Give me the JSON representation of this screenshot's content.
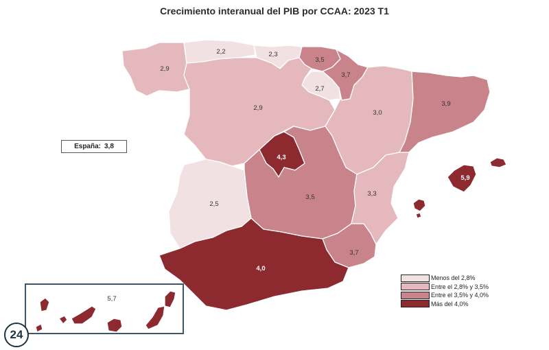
{
  "title": "Crecimiento interanual del PIB por CCAA: 2023 T1",
  "national": {
    "label": "España:",
    "value": "3,8"
  },
  "colors": {
    "menos_2_8": "#f1e1e3",
    "entre_2_8_3_5": "#e4b8bd",
    "entre_3_5_4_0": "#c9838a",
    "mas_4_0": "#8c2a30"
  },
  "legend": [
    {
      "label": "Menos del 2,8%",
      "color_key": "menos_2_8"
    },
    {
      "label": "Entre el 2,8% y 3,5%",
      "color_key": "entre_2_8_3_5"
    },
    {
      "label": "Entre el 3,5% y 4,0%",
      "color_key": "entre_3_5_4_0"
    },
    {
      "label": "Más del 4,0%",
      "color_key": "mas_4_0"
    }
  ],
  "regions": {
    "galicia": {
      "value": "2,9",
      "color_key": "entre_2_8_3_5"
    },
    "asturias": {
      "value": "2,2",
      "color_key": "menos_2_8"
    },
    "cantabria": {
      "value": "2,3",
      "color_key": "menos_2_8"
    },
    "pais_vasco": {
      "value": "3,5",
      "color_key": "entre_3_5_4_0"
    },
    "navarra": {
      "value": "3,7",
      "color_key": "entre_3_5_4_0"
    },
    "la_rioja": {
      "value": "2,7",
      "color_key": "menos_2_8"
    },
    "castilla_leon": {
      "value": "2,9",
      "color_key": "entre_2_8_3_5"
    },
    "aragon": {
      "value": "3,0",
      "color_key": "entre_2_8_3_5"
    },
    "cataluna": {
      "value": "3,9",
      "color_key": "entre_3_5_4_0"
    },
    "madrid": {
      "value": "4,3",
      "color_key": "mas_4_0"
    },
    "extremadura": {
      "value": "2,5",
      "color_key": "menos_2_8"
    },
    "castilla_la_mancha": {
      "value": "3,5",
      "color_key": "entre_3_5_4_0"
    },
    "comunidad_valenciana": {
      "value": "3,3",
      "color_key": "entre_2_8_3_5"
    },
    "murcia": {
      "value": "3,7",
      "color_key": "entre_3_5_4_0"
    },
    "andalucia": {
      "value": "4,0",
      "color_key": "mas_4_0"
    },
    "baleares": {
      "value": "5,9",
      "color_key": "mas_4_0"
    },
    "canarias": {
      "value": "5,7",
      "color_key": "mas_4_0"
    }
  },
  "logo": {
    "text": "24"
  }
}
